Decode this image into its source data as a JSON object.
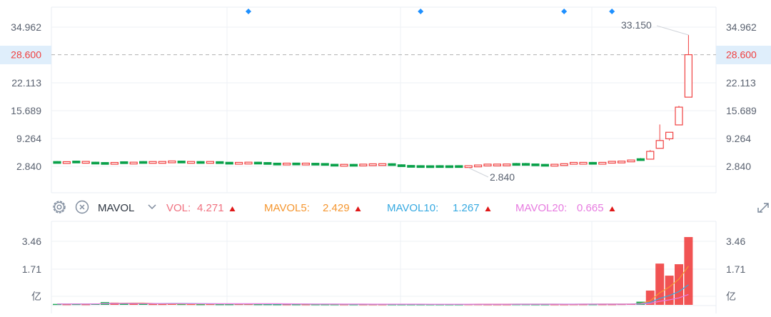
{
  "chart_data": {
    "type": "candlestick",
    "price_axis": {
      "ticks": [
        "34.962",
        "22.113",
        "15.689",
        "9.264",
        "2.840"
      ],
      "tick_values": [
        34.962,
        22.113,
        15.689,
        9.264,
        2.84
      ],
      "current_price_label": "28.600",
      "current_price": 28.6
    },
    "annotations": {
      "high_label": "33.150",
      "high_value": 33.15,
      "high_index": 66,
      "low_label": "2.840",
      "low_value": 2.84,
      "low_index": 43
    },
    "event_marker_indices": [
      20,
      38,
      53,
      58
    ],
    "candles_ohlc": [
      [
        3.95,
        4.05,
        3.85,
        3.85
      ],
      [
        3.8,
        3.95,
        3.75,
        3.92
      ],
      [
        4.05,
        4.15,
        3.95,
        3.95
      ],
      [
        3.85,
        4.0,
        3.8,
        3.98
      ],
      [
        3.8,
        3.9,
        3.65,
        3.7
      ],
      [
        3.72,
        3.8,
        3.6,
        3.62
      ],
      [
        3.6,
        3.78,
        3.55,
        3.74
      ],
      [
        3.9,
        4.0,
        3.8,
        3.82
      ],
      [
        3.7,
        3.85,
        3.65,
        3.8
      ],
      [
        3.95,
        4.05,
        3.8,
        3.85
      ],
      [
        3.82,
        3.98,
        3.78,
        3.95
      ],
      [
        3.82,
        3.98,
        3.78,
        3.96
      ],
      [
        3.92,
        4.12,
        3.9,
        4.08
      ],
      [
        4.05,
        4.15,
        3.92,
        3.95
      ],
      [
        3.82,
        3.98,
        3.78,
        3.96
      ],
      [
        3.95,
        4.05,
        3.82,
        3.85
      ],
      [
        3.82,
        3.98,
        3.78,
        3.96
      ],
      [
        3.92,
        4.0,
        3.8,
        3.82
      ],
      [
        3.78,
        3.85,
        3.65,
        3.7
      ],
      [
        3.6,
        3.78,
        3.55,
        3.75
      ],
      [
        3.65,
        3.85,
        3.6,
        3.8
      ],
      [
        3.8,
        3.9,
        3.65,
        3.7
      ],
      [
        3.72,
        3.8,
        3.55,
        3.6
      ],
      [
        3.58,
        3.65,
        3.45,
        3.48
      ],
      [
        3.45,
        3.62,
        3.4,
        3.58
      ],
      [
        3.6,
        3.65,
        3.45,
        3.48
      ],
      [
        3.45,
        3.62,
        3.4,
        3.58
      ],
      [
        3.55,
        3.62,
        3.42,
        3.45
      ],
      [
        3.5,
        3.58,
        3.38,
        3.4
      ],
      [
        3.32,
        3.4,
        3.2,
        3.25
      ],
      [
        3.25,
        3.35,
        3.2,
        3.3
      ],
      [
        3.3,
        3.4,
        3.2,
        3.25
      ],
      [
        3.18,
        3.38,
        3.12,
        3.35
      ],
      [
        3.3,
        3.45,
        3.25,
        3.42
      ],
      [
        3.35,
        3.5,
        3.3,
        3.45
      ],
      [
        3.45,
        3.55,
        3.3,
        3.32
      ],
      [
        3.2,
        3.3,
        3.05,
        3.1
      ],
      [
        3.05,
        3.15,
        2.9,
        2.95
      ],
      [
        3.0,
        3.1,
        2.9,
        2.95
      ],
      [
        2.98,
        3.08,
        2.88,
        2.92
      ],
      [
        3.0,
        3.1,
        2.88,
        2.92
      ],
      [
        2.98,
        3.08,
        2.88,
        2.92
      ],
      [
        3.0,
        3.1,
        2.88,
        2.92
      ],
      [
        2.88,
        3.02,
        2.84,
        2.98
      ],
      [
        3.02,
        3.2,
        3.0,
        3.15
      ],
      [
        3.2,
        3.4,
        3.18,
        3.35
      ],
      [
        3.22,
        3.4,
        3.18,
        3.36
      ],
      [
        3.2,
        3.4,
        3.18,
        3.38
      ],
      [
        3.5,
        3.62,
        3.4,
        3.45
      ],
      [
        3.5,
        3.62,
        3.4,
        3.45
      ],
      [
        3.4,
        3.5,
        3.28,
        3.32
      ],
      [
        3.3,
        3.4,
        3.18,
        3.22
      ],
      [
        3.2,
        3.35,
        3.15,
        3.32
      ],
      [
        3.3,
        3.5,
        3.28,
        3.45
      ],
      [
        3.65,
        3.8,
        3.6,
        3.75
      ],
      [
        3.65,
        3.8,
        3.6,
        3.76
      ],
      [
        3.75,
        3.85,
        3.62,
        3.65
      ],
      [
        3.62,
        3.8,
        3.6,
        3.76
      ],
      [
        3.85,
        4.05,
        3.82,
        4.0
      ],
      [
        3.9,
        4.1,
        3.85,
        4.05
      ],
      [
        4.1,
        4.35,
        4.05,
        4.3
      ],
      [
        4.6,
        4.75,
        4.15,
        4.2
      ],
      [
        4.5,
        6.6,
        4.4,
        6.3
      ],
      [
        7.0,
        12.5,
        7.0,
        8.8
      ],
      [
        9.2,
        10.7,
        8.8,
        10.7
      ],
      [
        12.4,
        16.8,
        12.4,
        16.5
      ],
      [
        18.8,
        33.15,
        18.8,
        28.6
      ]
    ],
    "volume_panel": {
      "indicator": "MAVOL",
      "ticks": [
        "3.46",
        "1.71",
        "亿"
      ],
      "tick_values": [
        3.46,
        1.71
      ],
      "volumes": [
        0.06,
        0.05,
        0.06,
        0.05,
        0.08,
        0.17,
        0.14,
        0.1,
        0.08,
        0.07,
        0.06,
        0.06,
        0.07,
        0.06,
        0.06,
        0.05,
        0.06,
        0.05,
        0.05,
        0.06,
        0.06,
        0.05,
        0.05,
        0.04,
        0.04,
        0.04,
        0.04,
        0.04,
        0.04,
        0.04,
        0.04,
        0.04,
        0.04,
        0.04,
        0.04,
        0.04,
        0.04,
        0.04,
        0.04,
        0.04,
        0.04,
        0.04,
        0.04,
        0.05,
        0.05,
        0.04,
        0.04,
        0.04,
        0.05,
        0.05,
        0.04,
        0.04,
        0.04,
        0.04,
        0.05,
        0.05,
        0.05,
        0.05,
        0.05,
        0.06,
        0.07,
        0.2,
        0.9,
        2.6,
        1.84,
        2.56,
        4.271
      ]
    },
    "colors": {
      "up": "#f04040",
      "down": "#0aa14a",
      "mavol5": "#f5962f",
      "mavol10": "#36a9e1",
      "mavol20": "#e77be0",
      "vol": "#f0707f",
      "current_price_line": "#f5962f",
      "marker": "#1e90ff"
    }
  },
  "indicator_bar": {
    "name": "MAVOL",
    "items": [
      {
        "label": "VOL:",
        "value": "4.271"
      },
      {
        "label": "MAVOL5:",
        "value": "2.429"
      },
      {
        "label": "MAVOL10:",
        "value": "1.267"
      },
      {
        "label": "MAVOL20:",
        "value": "0.665"
      }
    ]
  }
}
